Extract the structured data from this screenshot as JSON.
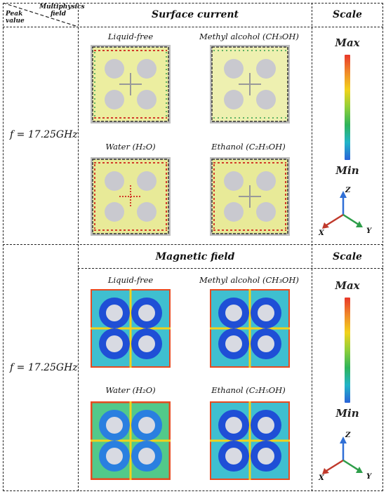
{
  "header": {
    "corner_top": "Multiphysics field",
    "corner_bottom": "Peak value",
    "surface_title": "Surface current",
    "magnetic_title": "Magnetic field",
    "scale_title": "Scale"
  },
  "rows": [
    {
      "frequency": "f = 17.25GHz",
      "captions": [
        "Liquid-free",
        "Methyl alcohol (CH₃OH)",
        "Water (H₂O)",
        "Ethanol (C₂H₅OH)"
      ]
    },
    {
      "frequency": "f = 17.25GHz",
      "captions": [
        "Liquid-free",
        "Methyl alcohol (CH₃OH)",
        "Water (H₂O)",
        "Ethanol (C₂H₅OH)"
      ]
    }
  ],
  "scale": {
    "max_label": "Max",
    "min_label": "Min"
  },
  "axes": {
    "x": "X",
    "y": "Y",
    "z": "Z"
  },
  "colors": {
    "axis_x": "#c0392b",
    "axis_y": "#2e9e4a",
    "axis_z": "#2f6fd6"
  }
}
